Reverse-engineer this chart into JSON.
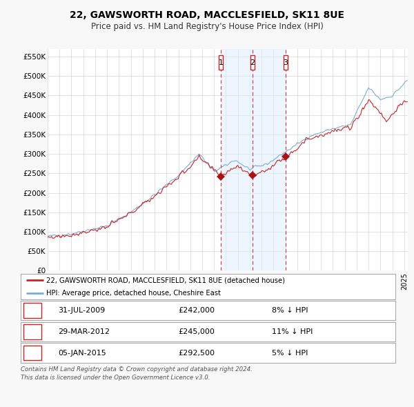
{
  "title": "22, GAWSWORTH ROAD, MACCLESFIELD, SK11 8UE",
  "subtitle": "Price paid vs. HM Land Registry's House Price Index (HPI)",
  "legend_property": "22, GAWSWORTH ROAD, MACCLESFIELD, SK11 8UE (detached house)",
  "legend_hpi": "HPI: Average price, detached house, Cheshire East",
  "ylabel_ticks": [
    "£0",
    "£50K",
    "£100K",
    "£150K",
    "£200K",
    "£250K",
    "£300K",
    "£350K",
    "£400K",
    "£450K",
    "£500K",
    "£550K"
  ],
  "ytick_values": [
    0,
    50000,
    100000,
    150000,
    200000,
    250000,
    300000,
    350000,
    400000,
    450000,
    500000,
    550000
  ],
  "ylim": [
    0,
    570000
  ],
  "xlim_start": 1995.0,
  "xlim_end": 2025.3,
  "sale_markers": [
    {
      "date_num": 2009.58,
      "value": 242000,
      "label": "1",
      "date_str": "31-JUL-2009",
      "price_str": "£242,000",
      "pct": "8%",
      "dir": "↓"
    },
    {
      "date_num": 2012.24,
      "value": 245000,
      "label": "2",
      "date_str": "29-MAR-2012",
      "price_str": "£245,000",
      "pct": "11%",
      "dir": "↓"
    },
    {
      "date_num": 2015.01,
      "value": 292500,
      "label": "3",
      "date_str": "05-JAN-2015",
      "price_str": "£292,500",
      "pct": "5%",
      "dir": "↓"
    }
  ],
  "footer_line1": "Contains HM Land Registry data © Crown copyright and database right 2024.",
  "footer_line2": "This data is licensed under the Open Government Licence v3.0.",
  "bg_color": "#f8f8f8",
  "plot_bg_color": "#ffffff",
  "grid_color": "#cccccc",
  "property_line_color": "#cc2222",
  "hpi_line_color": "#7aadd4",
  "hpi_fill_color": "#ddeeff",
  "marker_color": "#aa1111",
  "vline_color": "#cc3333",
  "box_color": "#cc2222",
  "shade_color": "#ddeeff"
}
